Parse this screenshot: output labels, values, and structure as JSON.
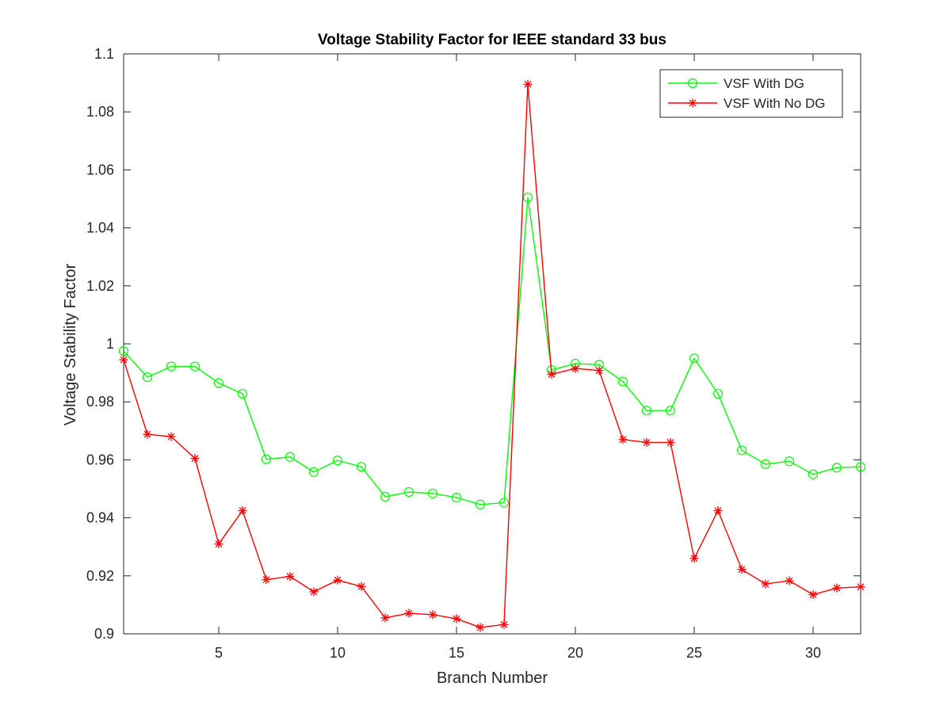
{
  "chart_data": {
    "type": "line",
    "title": "Voltage Stability Factor for IEEE standard 33 bus",
    "xlabel": "Branch Number",
    "ylabel": "Voltage Stability Factor",
    "xlim": [
      1,
      32
    ],
    "ylim": [
      0.9,
      1.1
    ],
    "xticks": [
      5,
      10,
      15,
      20,
      25,
      30
    ],
    "xtick_labels": [
      "5",
      "10",
      "15",
      "20",
      "25",
      "30"
    ],
    "yticks": [
      0.9,
      0.92,
      0.94,
      0.96,
      0.98,
      1.0,
      1.02,
      1.04,
      1.06,
      1.08,
      1.1
    ],
    "ytick_labels": [
      "0.9",
      "0.92",
      "0.94",
      "0.96",
      "0.98",
      "1",
      "1.02",
      "1.04",
      "1.06",
      "1.08",
      "1.1"
    ],
    "grid": false,
    "legend_position": "top-right",
    "x": [
      1,
      2,
      3,
      4,
      5,
      6,
      7,
      8,
      9,
      10,
      11,
      12,
      13,
      14,
      15,
      16,
      17,
      18,
      19,
      20,
      21,
      22,
      23,
      24,
      25,
      26,
      27,
      28,
      29,
      30,
      31,
      32
    ],
    "series": [
      {
        "name": "VSF With DG",
        "color": "#00ff00",
        "marker": "circle",
        "values": [
          0.9975,
          0.9885,
          0.9922,
          0.9922,
          0.9865,
          0.9828,
          0.9602,
          0.961,
          0.9558,
          0.9598,
          0.9576,
          0.9473,
          0.9489,
          0.9484,
          0.947,
          0.9446,
          0.9452,
          1.0505,
          0.991,
          0.9932,
          0.9928,
          0.987,
          0.977,
          0.977,
          0.995,
          0.9828,
          0.9633,
          0.9585,
          0.9595,
          0.955,
          0.9573,
          0.9576
        ]
      },
      {
        "name": "VSF With No DG",
        "color": "#ff0000",
        "marker": "asterisk",
        "values": [
          0.9945,
          0.9688,
          0.968,
          0.9605,
          0.931,
          0.9425,
          0.9187,
          0.9198,
          0.9145,
          0.9185,
          0.9163,
          0.9055,
          0.9071,
          0.9066,
          0.9052,
          0.9022,
          0.9032,
          1.0895,
          0.9895,
          0.9915,
          0.9908,
          0.967,
          0.966,
          0.966,
          0.926,
          0.9425,
          0.9222,
          0.9172,
          0.9183,
          0.9135,
          0.9158,
          0.9162
        ]
      }
    ]
  }
}
